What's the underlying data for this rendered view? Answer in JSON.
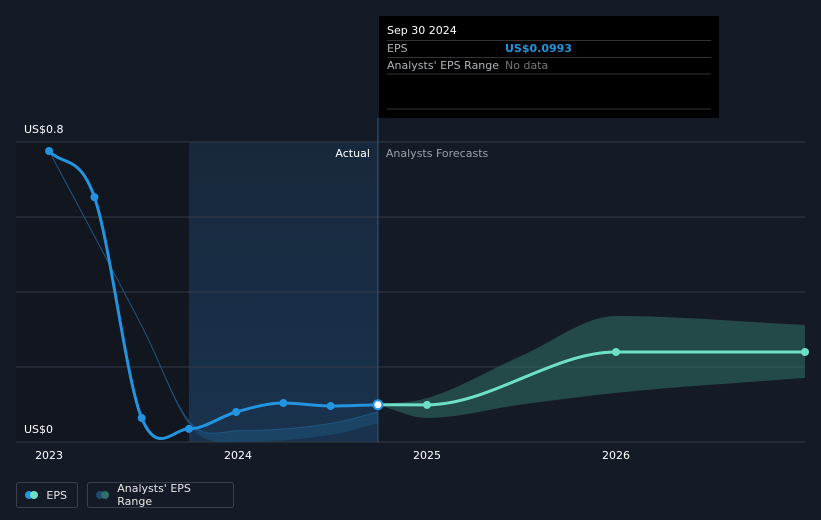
{
  "chart_data": {
    "type": "line",
    "xlim": [
      2022.825,
      2027
    ],
    "xticks": [
      2023,
      2024,
      2025,
      2026
    ],
    "ylim": [
      0,
      0.8
    ],
    "yticks": [
      {
        "value": 0,
        "label": "US$0"
      },
      {
        "value": 0.2,
        "label": null
      },
      {
        "value": 0.4,
        "label": null
      },
      {
        "value": 0.6,
        "label": null
      },
      {
        "value": 0.8,
        "label": "US$0.8"
      }
    ],
    "grid": true,
    "highlight_x": [
      2023.74,
      2024.74
    ],
    "region_labels": [
      "Actual",
      "Analysts Forecasts"
    ],
    "series": [
      {
        "name": "EPS",
        "color": "#2394df",
        "x": [
          2023.0,
          2023.24,
          2023.49,
          2023.74,
          2023.99,
          2024.24,
          2024.49,
          2024.74
        ],
        "values": [
          0.776,
          0.653,
          0.064,
          0.035,
          0.08,
          0.104,
          0.096,
          0.0993
        ]
      },
      {
        "name": "Analysts' EPS Range",
        "color": "#2f6f66",
        "x": [
          2024.74,
          2025.0,
          2025.5,
          2026.0,
          2027.0
        ],
        "low": [
          0.0993,
          0.064,
          0.1,
          0.131,
          0.171
        ],
        "high": [
          0.0993,
          0.117,
          0.23,
          0.336,
          0.312
        ]
      }
    ],
    "forecast": {
      "color": "#6ee0c8",
      "x": [
        2024.74,
        2025.0,
        2026.0,
        2027.0
      ],
      "values": [
        0.0993,
        0.099,
        0.24,
        0.24
      ]
    },
    "past_range": {
      "color": "#1d4a70",
      "x": [
        2023.0,
        2023.5,
        2023.75,
        2024.0,
        2024.5,
        2024.74
      ],
      "low": [
        0.776,
        0.3,
        0.04,
        0.0,
        0.02,
        0.05
      ],
      "high": [
        0.776,
        0.3,
        0.05,
        0.03,
        0.05,
        0.08
      ]
    },
    "tooltip": {
      "date": "Sep 30 2024",
      "rows": [
        {
          "label": "EPS",
          "value": "US$0.0993"
        },
        {
          "label": "Analysts' EPS Range",
          "value": "No data"
        }
      ]
    }
  }
}
